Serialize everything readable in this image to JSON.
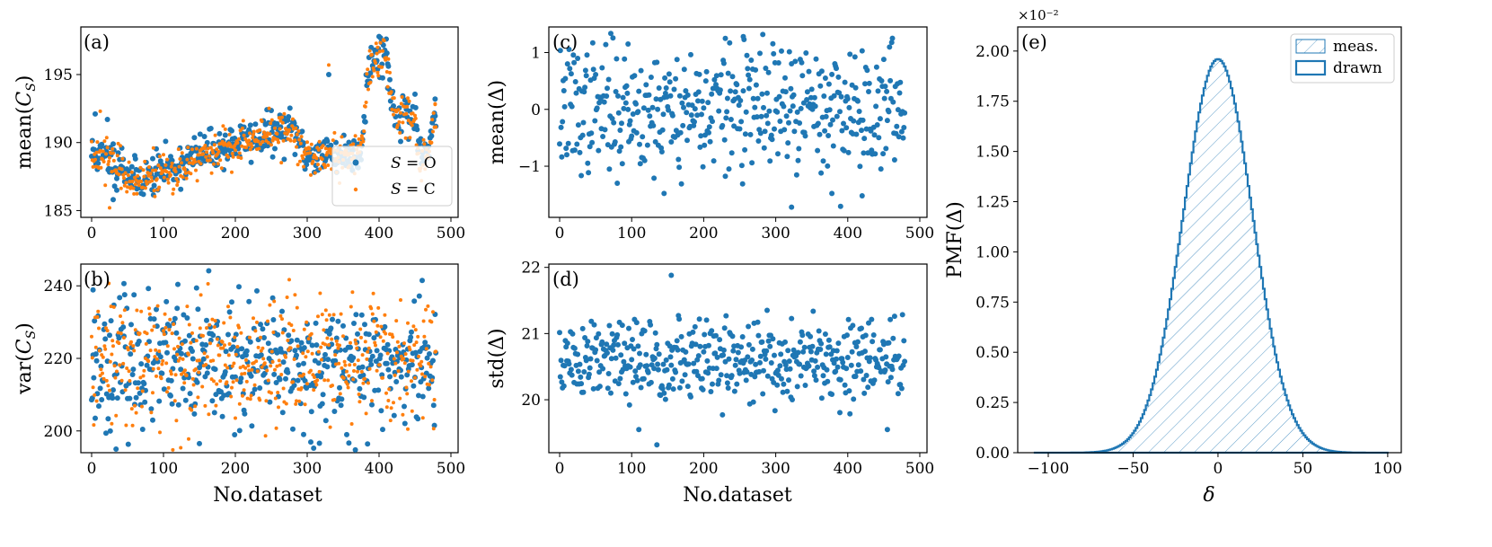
{
  "colors": {
    "series_O": "#1f77b4",
    "series_C": "#ff7f0e",
    "hist": "#1f77b4"
  },
  "chart_data": [
    {
      "id": "a",
      "type": "scatter",
      "panel_label": "(a)",
      "ylabel": "mean(C_S)",
      "xlabel": "",
      "xlim": [
        -15,
        510
      ],
      "ylim": [
        184.5,
        198.5
      ],
      "xticks": [
        0,
        100,
        200,
        300,
        400,
        500
      ],
      "yticks": [
        185,
        190,
        195
      ],
      "legend": {
        "position": "lower-right",
        "entries": [
          "S = O",
          "S = C"
        ]
      },
      "series": [
        {
          "name": "S = O",
          "color": "#1f77b4",
          "segments": [
            [
              0,
              189.2
            ],
            [
              20,
              188.8
            ],
            [
              40,
              188.6
            ],
            [
              60,
              187.3
            ],
            [
              80,
              187.5
            ],
            [
              100,
              188.0
            ],
            [
              120,
              188.3
            ],
            [
              140,
              188.9
            ],
            [
              160,
              189.3
            ],
            [
              180,
              189.6
            ],
            [
              200,
              190.0
            ],
            [
              220,
              190.2
            ],
            [
              240,
              190.5
            ],
            [
              260,
              190.8
            ],
            [
              280,
              191.0
            ],
            [
              300,
              189.0
            ],
            [
              320,
              189.3
            ],
            [
              340,
              189.2
            ],
            [
              360,
              189.1
            ],
            [
              375,
              189.5
            ],
            [
              385,
              195.5
            ],
            [
              400,
              196.5
            ],
            [
              410,
              196.7
            ],
            [
              420,
              192.2
            ],
            [
              440,
              192.0
            ],
            [
              450,
              191.8
            ],
            [
              455,
              189.0
            ],
            [
              470,
              189.5
            ],
            [
              480,
              192.0
            ]
          ],
          "special": [
            [
              5,
              192.1
            ],
            [
              22,
              191.7
            ],
            [
              30,
              185.8
            ],
            [
              35,
              186.5
            ],
            [
              330,
              195.0
            ],
            [
              400,
              197.8
            ],
            [
              412,
              194.0
            ],
            [
              478,
              193.2
            ]
          ]
        },
        {
          "name": "S = C",
          "color": "#ff7f0e",
          "segments": [
            [
              0,
              189.0
            ],
            [
              20,
              188.6
            ],
            [
              40,
              188.4
            ],
            [
              60,
              187.1
            ],
            [
              80,
              187.3
            ],
            [
              100,
              187.8
            ],
            [
              120,
              188.1
            ],
            [
              140,
              188.7
            ],
            [
              160,
              189.1
            ],
            [
              180,
              189.4
            ],
            [
              200,
              189.8
            ],
            [
              220,
              190.0
            ],
            [
              240,
              190.3
            ],
            [
              260,
              190.6
            ],
            [
              280,
              190.8
            ],
            [
              300,
              188.8
            ],
            [
              320,
              189.1
            ],
            [
              340,
              189.0
            ],
            [
              360,
              188.9
            ],
            [
              375,
              189.3
            ],
            [
              385,
              195.2
            ],
            [
              400,
              196.2
            ],
            [
              410,
              196.4
            ],
            [
              420,
              192.0
            ],
            [
              440,
              191.8
            ],
            [
              450,
              191.6
            ],
            [
              455,
              188.8
            ],
            [
              470,
              189.3
            ],
            [
              480,
              191.7
            ]
          ],
          "special": [
            [
              25,
              185.2
            ],
            [
              12,
              192.3
            ],
            [
              330,
              195.7
            ],
            [
              398,
              197.0
            ],
            [
              478,
              192.8
            ]
          ]
        }
      ],
      "n_points": 480
    },
    {
      "id": "b",
      "type": "scatter",
      "panel_label": "(b)",
      "ylabel": "var(C_S)",
      "xlabel": "No.dataset",
      "xlim": [
        -15,
        510
      ],
      "ylim": [
        194,
        246
      ],
      "xticks": [
        0,
        100,
        200,
        300,
        400,
        500
      ],
      "yticks": [
        200,
        220,
        240
      ],
      "series": [
        {
          "name": "S = O",
          "color": "#1f77b4",
          "center": 218,
          "spread": 8.5,
          "special": [
            [
              2,
              238.9
            ],
            [
              45,
              240.6
            ],
            [
              120,
              240.4
            ],
            [
              150,
              196.5
            ],
            [
              295,
              199.0
            ],
            [
              460,
              241.5
            ]
          ]
        },
        {
          "name": "S = C",
          "color": "#ff7f0e",
          "center": 219,
          "spread": 8.5,
          "special": [
            [
              28,
              202.0
            ],
            [
              135,
              197.8
            ],
            [
              275,
              241.7
            ],
            [
              440,
              200.5
            ]
          ]
        }
      ],
      "n_points": 480
    },
    {
      "id": "c",
      "type": "scatter",
      "panel_label": "(c)",
      "ylabel": "mean(Δ)",
      "xlabel": "",
      "xlim": [
        -15,
        510
      ],
      "ylim": [
        -1.9,
        1.45
      ],
      "xticks": [
        0,
        100,
        200,
        300,
        400,
        500
      ],
      "yticks": [
        -1,
        0,
        1
      ],
      "series": [
        {
          "name": "",
          "color": "#1f77b4",
          "center": 0.0,
          "spread": 0.55,
          "special": [
            [
              230,
              1.25
            ],
            [
              255,
              1.28
            ],
            [
              322,
              -1.72
            ],
            [
              420,
              -1.52
            ],
            [
              378,
              -1.48
            ],
            [
              145,
              -1.48
            ],
            [
              95,
              1.15
            ]
          ]
        }
      ],
      "n_points": 480
    },
    {
      "id": "d",
      "type": "scatter",
      "panel_label": "(d)",
      "ylabel": "std(Δ)",
      "xlabel": "No.dataset",
      "xlim": [
        -15,
        510
      ],
      "ylim": [
        19.2,
        22.05
      ],
      "xticks": [
        0,
        100,
        200,
        300,
        400,
        500
      ],
      "yticks": [
        20,
        21,
        22
      ],
      "series": [
        {
          "name": "",
          "color": "#1f77b4",
          "center": 20.58,
          "spread": 0.32,
          "special": [
            [
              155,
              21.88
            ],
            [
              135,
              19.32
            ],
            [
              455,
              19.55
            ],
            [
              110,
              19.55
            ]
          ]
        }
      ],
      "n_points": 480
    },
    {
      "id": "e",
      "type": "area",
      "panel_label": "(e)",
      "ylabel": "PMF(Δ)",
      "xlabel": "δ",
      "xlim": [
        -118,
        108
      ],
      "ylim": [
        0,
        2.12
      ],
      "xticks": [
        -100,
        -50,
        0,
        50,
        100
      ],
      "yticks": [
        0.0,
        0.25,
        0.5,
        0.75,
        1.0,
        1.25,
        1.5,
        1.75,
        2.0
      ],
      "ytick_labels": [
        "0.00",
        "0.25",
        "0.50",
        "0.75",
        "1.00",
        "1.25",
        "1.50",
        "1.75",
        "2.00"
      ],
      "multiplier_label": "×10⁻²",
      "distribution": {
        "mean": 0,
        "std": 20.4,
        "peak": 1.96
      },
      "legend": {
        "position": "top-right",
        "entries": [
          "meas.",
          "drawn"
        ]
      }
    }
  ]
}
